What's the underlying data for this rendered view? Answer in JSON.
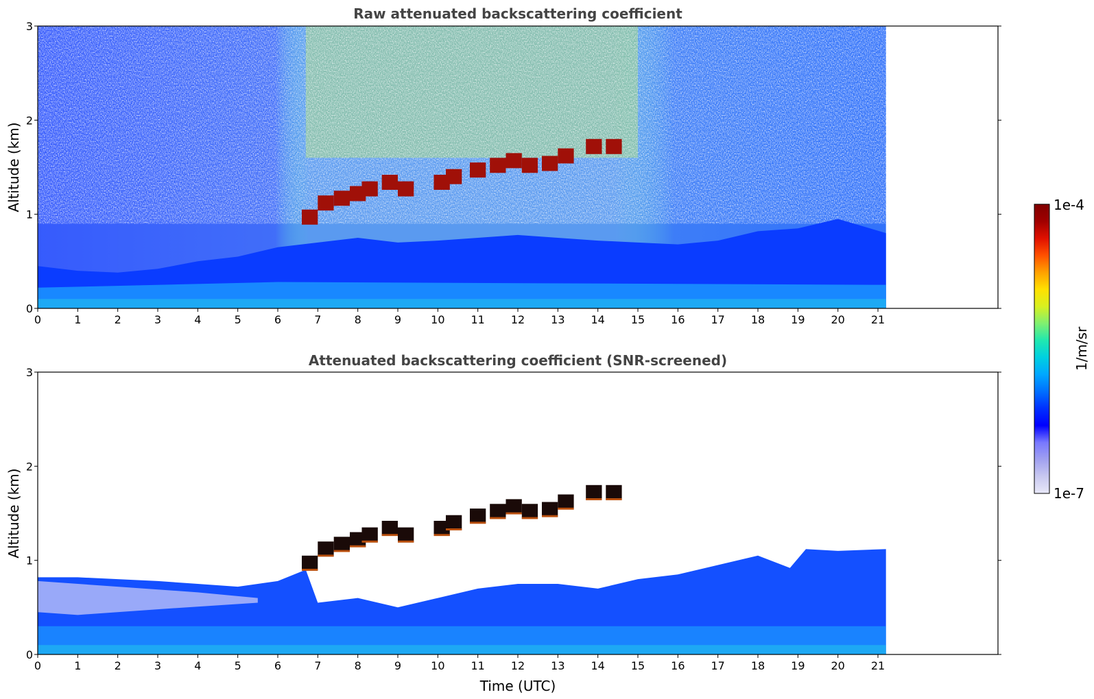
{
  "chart_data": [
    {
      "type": "heatmap",
      "title": "Raw attenuated backscattering coefficient",
      "xlabel": "",
      "ylabel": "Altitude (km)",
      "xlim": [
        0,
        24
      ],
      "ylim": [
        0,
        3
      ],
      "x_ticks": [
        0,
        1,
        2,
        3,
        4,
        5,
        6,
        7,
        8,
        9,
        10,
        11,
        12,
        13,
        14,
        15,
        16,
        17,
        18,
        19,
        20,
        21
      ],
      "y_ticks": [
        0,
        1,
        2,
        3
      ],
      "data_extent_x": [
        0,
        21.2
      ],
      "boundary_layer_top_km": {
        "x": [
          0,
          1,
          2,
          3,
          4,
          5,
          6,
          7,
          8,
          9,
          10,
          11,
          12,
          13,
          14,
          15,
          16,
          17,
          18,
          19,
          20,
          21.2
        ],
        "y": [
          0.45,
          0.4,
          0.38,
          0.42,
          0.5,
          0.55,
          0.65,
          0.7,
          0.75,
          0.7,
          0.72,
          0.75,
          0.78,
          0.75,
          0.72,
          0.7,
          0.68,
          0.72,
          0.82,
          0.85,
          0.95,
          0.8
        ]
      },
      "cloud_layer_km": {
        "x": [
          6.8,
          7.2,
          7.6,
          8.0,
          8.3,
          8.8,
          9.2,
          10.1,
          10.4,
          11.0,
          11.5,
          11.9,
          12.3,
          12.8,
          13.2,
          13.9,
          14.4
        ],
        "y": [
          0.95,
          1.1,
          1.15,
          1.2,
          1.25,
          1.32,
          1.25,
          1.32,
          1.38,
          1.45,
          1.5,
          1.55,
          1.5,
          1.52,
          1.6,
          1.7,
          1.7
        ]
      },
      "noise_enhanced_x_range": [
        6.7,
        15.0
      ]
    },
    {
      "type": "heatmap",
      "title": "Attenuated backscattering coefficient (SNR-screened)",
      "xlabel": "Time (UTC)",
      "ylabel": "Altitude (km)",
      "xlim": [
        0,
        24
      ],
      "ylim": [
        0,
        3
      ],
      "x_ticks": [
        0,
        1,
        2,
        3,
        4,
        5,
        6,
        7,
        8,
        9,
        10,
        11,
        12,
        13,
        14,
        15,
        16,
        17,
        18,
        19,
        20,
        21
      ],
      "y_ticks": [
        0,
        1,
        2,
        3
      ],
      "data_extent_x": [
        0,
        21.2
      ],
      "signal_top_km": {
        "x": [
          0,
          1,
          2,
          3,
          4,
          5,
          6,
          6.7,
          7,
          8,
          9,
          10,
          11,
          12,
          13,
          14,
          15,
          16,
          17,
          18,
          18.8,
          19.2,
          20,
          21.2
        ],
        "y": [
          0.82,
          0.82,
          0.8,
          0.78,
          0.75,
          0.72,
          0.78,
          0.9,
          0.55,
          0.6,
          0.5,
          0.6,
          0.7,
          0.75,
          0.75,
          0.7,
          0.8,
          0.85,
          0.95,
          1.05,
          0.92,
          1.12,
          1.1,
          1.12
        ]
      },
      "cloud_layer_km": {
        "x": [
          6.8,
          7.2,
          7.6,
          8.0,
          8.3,
          8.8,
          9.2,
          10.1,
          10.4,
          11.0,
          11.5,
          11.9,
          12.3,
          12.8,
          13.2,
          13.9,
          14.4
        ],
        "y": [
          0.95,
          1.1,
          1.15,
          1.2,
          1.25,
          1.32,
          1.25,
          1.32,
          1.38,
          1.45,
          1.5,
          1.55,
          1.5,
          1.52,
          1.6,
          1.7,
          1.7
        ]
      }
    }
  ],
  "colorbar": {
    "label": "1/m/sr",
    "max_label": "1e-4",
    "min_label": "1e-7",
    "colors": [
      "#e8e8f8",
      "#c8c8f0",
      "#a0a0f0",
      "#7878ff",
      "#0000ff",
      "#0030ff",
      "#0070ff",
      "#00a8ff",
      "#00d0e0",
      "#20e8b0",
      "#80f070",
      "#d8f020",
      "#ffe000",
      "#ffa000",
      "#ff5000",
      "#e01000",
      "#a00000",
      "#800000"
    ]
  }
}
